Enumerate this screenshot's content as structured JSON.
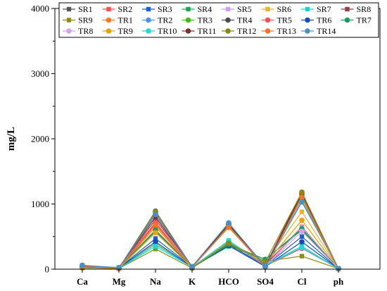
{
  "chart_data": {
    "type": "line",
    "title": "",
    "xlabel": "",
    "ylabel": "mg/L",
    "ylim": [
      0,
      4000
    ],
    "yticks": [
      0,
      1000,
      2000,
      3000,
      4000
    ],
    "grid": false,
    "legend_position": "top-right",
    "categories": [
      "Ca",
      "Mg",
      "Na",
      "K",
      "HCO",
      "SO4",
      "Cl",
      "ph"
    ],
    "series": [
      {
        "name": "SR1",
        "color": "#555555",
        "marker": "square",
        "values": [
          40,
          15,
          600,
          30,
          400,
          80,
          620,
          7
        ]
      },
      {
        "name": "SR2",
        "color": "#ff4d4d",
        "marker": "square",
        "values": [
          35,
          12,
          700,
          25,
          420,
          60,
          650,
          7
        ]
      },
      {
        "name": "SR3",
        "color": "#1e5fd6",
        "marker": "square",
        "values": [
          45,
          18,
          470,
          35,
          380,
          50,
          500,
          7
        ]
      },
      {
        "name": "SR4",
        "color": "#22a55a",
        "marker": "square",
        "values": [
          50,
          20,
          580,
          30,
          350,
          150,
          600,
          7
        ]
      },
      {
        "name": "SR5",
        "color": "#c9a0f0",
        "marker": "square",
        "values": [
          30,
          10,
          820,
          20,
          650,
          40,
          640,
          7
        ]
      },
      {
        "name": "SR6",
        "color": "#e8b428",
        "marker": "square",
        "values": [
          25,
          15,
          400,
          25,
          420,
          100,
          880,
          7
        ]
      },
      {
        "name": "SR7",
        "color": "#1ccfd0",
        "marker": "square",
        "values": [
          45,
          14,
          380,
          30,
          440,
          60,
          350,
          7
        ]
      },
      {
        "name": "SR8",
        "color": "#8b4242",
        "marker": "square",
        "values": [
          55,
          22,
          760,
          40,
          680,
          50,
          1180,
          7
        ]
      },
      {
        "name": "SR9",
        "color": "#8c8c14",
        "marker": "square",
        "values": [
          20,
          10,
          310,
          15,
          380,
          120,
          200,
          7
        ]
      },
      {
        "name": "TR1",
        "color": "#ff7a1f",
        "marker": "circle",
        "values": [
          35,
          12,
          650,
          30,
          640,
          30,
          1120,
          7
        ]
      },
      {
        "name": "TR2",
        "color": "#4a96d2",
        "marker": "circle",
        "values": [
          60,
          25,
          850,
          40,
          700,
          40,
          1050,
          7
        ]
      },
      {
        "name": "TR3",
        "color": "#3cba1e",
        "marker": "circle",
        "values": [
          30,
          10,
          880,
          35,
          660,
          60,
          1090,
          7
        ]
      },
      {
        "name": "TR4",
        "color": "#4d4d4d",
        "marker": "circle",
        "values": [
          40,
          15,
          890,
          30,
          690,
          35,
          1150,
          7
        ]
      },
      {
        "name": "TR5",
        "color": "#ff5050",
        "marker": "circle",
        "values": [
          35,
          14,
          720,
          25,
          420,
          50,
          320,
          7
        ]
      },
      {
        "name": "TR6",
        "color": "#1050b8",
        "marker": "circle",
        "values": [
          45,
          16,
          420,
          30,
          360,
          40,
          420,
          7
        ]
      },
      {
        "name": "TR7",
        "color": "#1a9a5c",
        "marker": "circle",
        "values": [
          40,
          18,
          600,
          25,
          380,
          150,
          620,
          7
        ]
      },
      {
        "name": "TR8",
        "color": "#d8a0f0",
        "marker": "circle",
        "values": [
          30,
          10,
          800,
          20,
          650,
          40,
          580,
          7
        ]
      },
      {
        "name": "TR9",
        "color": "#f0a000",
        "marker": "circle",
        "values": [
          25,
          12,
          560,
          25,
          410,
          80,
          750,
          7
        ]
      },
      {
        "name": "TR10",
        "color": "#20d8d8",
        "marker": "circle",
        "values": [
          45,
          14,
          350,
          30,
          430,
          60,
          330,
          7
        ]
      },
      {
        "name": "TR11",
        "color": "#7a3030",
        "marker": "circle",
        "values": [
          50,
          20,
          800,
          35,
          690,
          40,
          1170,
          7
        ]
      },
      {
        "name": "TR12",
        "color": "#8a8a10",
        "marker": "circle",
        "values": [
          25,
          10,
          880,
          20,
          400,
          110,
          1180,
          7
        ]
      },
      {
        "name": "TR13",
        "color": "#ff7020",
        "marker": "circle",
        "values": [
          40,
          15,
          680,
          30,
          650,
          30,
          1100,
          7
        ]
      },
      {
        "name": "TR14",
        "color": "#4a90c8",
        "marker": "circle",
        "values": [
          55,
          22,
          840,
          40,
          710,
          40,
          1030,
          7
        ]
      }
    ]
  }
}
